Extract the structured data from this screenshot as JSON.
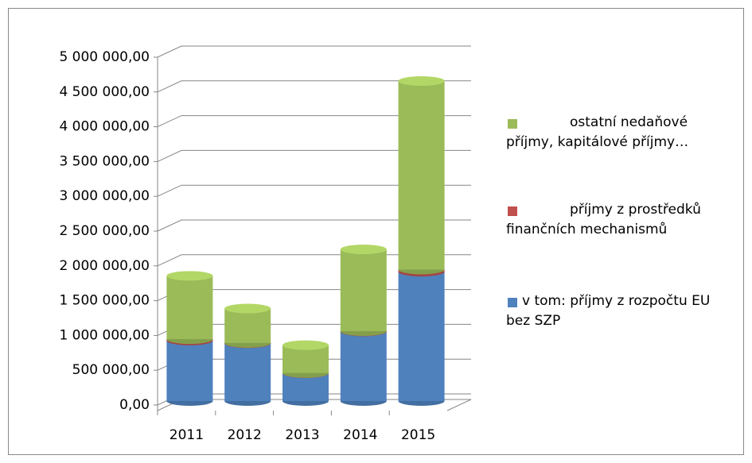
{
  "chart_data": {
    "type": "bar3d_stacked",
    "categories": [
      "2011",
      "2012",
      "2013",
      "2014",
      "2015"
    ],
    "series": [
      {
        "name": "v tom: příjmy z rozpočtu EU bez SZP",
        "color": "#4f81bd",
        "values": [
          870000,
          830000,
          400000,
          1000000,
          1860000
        ]
      },
      {
        "name": "příjmy z prostředků finančních mechanismů",
        "color": "#c0504d",
        "values": [
          20000,
          5000,
          3000,
          5000,
          30000
        ]
      },
      {
        "name": "ostatní nedaňové příjmy, kapitálové příjmy…",
        "color": "#9bbb59",
        "values": [
          910000,
          495000,
          400000,
          1175000,
          2710000
        ]
      }
    ],
    "ylim": [
      0,
      5000000
    ],
    "yticks": [
      {
        "value": 0,
        "label": "0,00"
      },
      {
        "value": 500000,
        "label": "500 000,00"
      },
      {
        "value": 1000000,
        "label": "1 000 000,00"
      },
      {
        "value": 1500000,
        "label": "1 500 000,00"
      },
      {
        "value": 2000000,
        "label": "2 000 000,00"
      },
      {
        "value": 2500000,
        "label": "2 500 000,00"
      },
      {
        "value": 3000000,
        "label": "3 000 000,00"
      },
      {
        "value": 3500000,
        "label": "3 500 000,00"
      },
      {
        "value": 4000000,
        "label": "4 000 000,00"
      },
      {
        "value": 4500000,
        "label": "4 500 000,00"
      },
      {
        "value": 5000000,
        "label": "5 000 000,00"
      }
    ],
    "grid": true,
    "legend": "right"
  }
}
